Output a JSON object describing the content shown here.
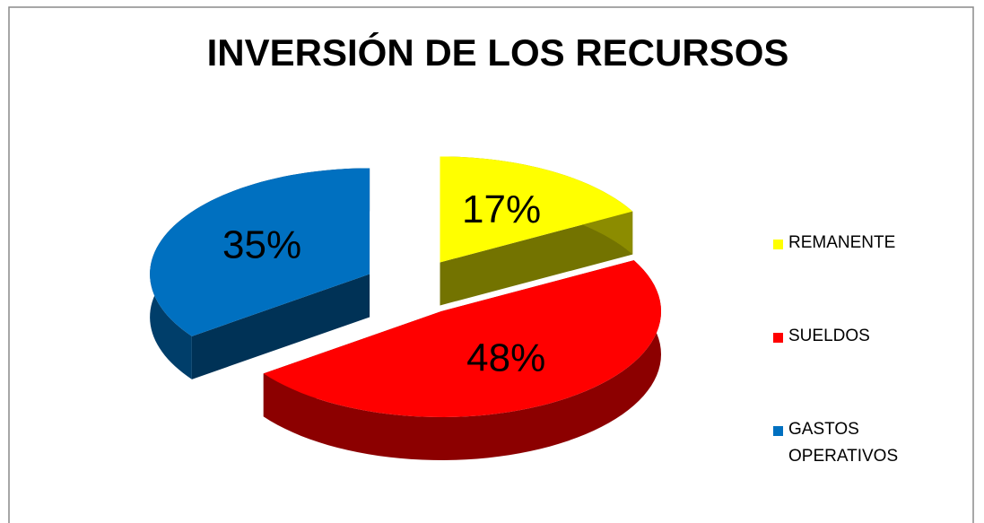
{
  "chart_data": {
    "type": "pie",
    "title": "INVERSIÓN DE LOS RECURSOS",
    "categories": [
      "REMANENTE",
      "SUELDOS",
      "GASTOS OPERATIVOS"
    ],
    "values": [
      17,
      48,
      35
    ],
    "value_labels": [
      "17%",
      "48%",
      "35%"
    ],
    "colors": [
      "#ffff00",
      "#ff0000",
      "#0070c0"
    ],
    "legend": "right",
    "exploded": true
  }
}
